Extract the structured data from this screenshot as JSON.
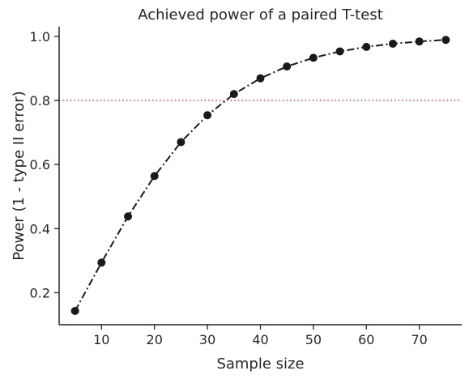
{
  "chart_data": {
    "type": "line",
    "title": "Achieved power of a paired T-test",
    "xlabel": "Sample size",
    "ylabel": "Power (1 - type II error)",
    "xlim": [
      2,
      78
    ],
    "ylim": [
      0.1,
      1.03
    ],
    "xticks": [
      10,
      20,
      30,
      40,
      50,
      60,
      70
    ],
    "yticks": [
      0.2,
      0.4,
      0.6,
      0.8,
      1.0
    ],
    "xtick_labels": [
      "10",
      "20",
      "30",
      "40",
      "50",
      "60",
      "70"
    ],
    "ytick_labels": [
      "0.2",
      "0.4",
      "0.6",
      "0.8",
      "1.0"
    ],
    "grid": false,
    "series": [
      {
        "x": [
          5,
          10,
          15,
          20,
          25,
          30,
          35,
          40,
          45,
          50,
          55,
          60,
          65,
          70,
          75
        ],
        "values": [
          0.143,
          0.294,
          0.438,
          0.564,
          0.67,
          0.754,
          0.82,
          0.869,
          0.906,
          0.933,
          0.953,
          0.967,
          0.977,
          0.984,
          0.989
        ],
        "line_style": "dashdot",
        "marker": "circle",
        "color": "#1a1a1a"
      }
    ],
    "reference_lines": [
      {
        "axis": "y",
        "value": 0.8,
        "line_style": "dotted",
        "color": "#c0504d"
      }
    ]
  }
}
